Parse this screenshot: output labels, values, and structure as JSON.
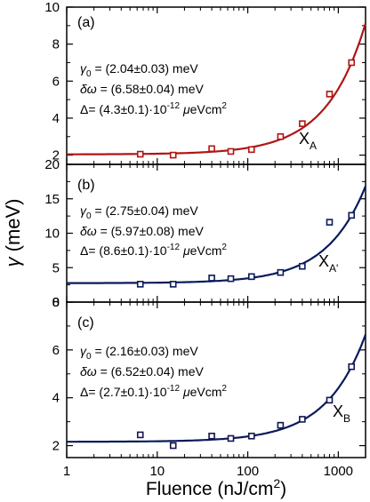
{
  "figure": {
    "xlabel": "Fluence (nJ/cm2)",
    "xlabel_main": "Fluence (nJ/cm",
    "xlabel_sup": "2",
    "xlabel_end": ")",
    "ylabel": "γ (meV)",
    "colors": {
      "a": "#b01515",
      "b": "#0a1a5a",
      "c": "#0a1a5a",
      "marker_c": "#141450"
    }
  },
  "chart_data": [
    {
      "type": "scatter",
      "panel": "(a)",
      "xscale": "log",
      "xlim": [
        1,
        2000
      ],
      "ylim": [
        1.5,
        10
      ],
      "yticks": [
        "2",
        "4",
        "6",
        "8",
        "10"
      ],
      "xticks": [
        "1",
        "10",
        "100",
        "1000"
      ],
      "series": [
        {
          "name": "XA",
          "name_main": "X",
          "name_sub": "A",
          "points": [
            [
              6.5,
              2.05
            ],
            [
              15,
              2.0
            ],
            [
              40,
              2.35
            ],
            [
              65,
              2.2
            ],
            [
              110,
              2.3
            ],
            [
              230,
              3.0
            ],
            [
              400,
              3.7
            ],
            [
              800,
              5.3
            ],
            [
              1400,
              7.0
            ]
          ]
        }
      ],
      "fit": {
        "gamma0": 2.04,
        "delta_omega": 6.58,
        "Delta": 4.3e-12
      },
      "annotations": {
        "gamma0": "γ0 = (2.04±0.03) meV",
        "delta_omega": "δω = (6.58±0.04) meV",
        "Delta": "Δ= (4.3±0.1)·10-12 μeVcm2"
      }
    },
    {
      "type": "scatter",
      "panel": "(b)",
      "xscale": "log",
      "xlim": [
        1,
        2000
      ],
      "ylim": [
        0,
        20
      ],
      "yticks": [
        "0",
        "5",
        "10",
        "15",
        "20"
      ],
      "xticks": [
        "1",
        "10",
        "100",
        "1000"
      ],
      "series": [
        {
          "name": "XA'",
          "name_main": "X",
          "name_sub": "A'",
          "points": [
            [
              6.5,
              2.6
            ],
            [
              15,
              2.6
            ],
            [
              40,
              3.5
            ],
            [
              65,
              3.4
            ],
            [
              110,
              3.7
            ],
            [
              230,
              4.3
            ],
            [
              400,
              5.2
            ],
            [
              800,
              11.6
            ],
            [
              1400,
              12.6
            ]
          ]
        }
      ],
      "fit": {
        "gamma0": 2.75,
        "delta_omega": 5.97,
        "Delta": 8.6e-12
      },
      "annotations": {
        "gamma0": "γ0 = (2.75±0.04) meV",
        "delta_omega": "δω = (5.97±0.08) meV",
        "Delta": "Δ= (8.6±0.1)·10-12 μeVcm2"
      }
    },
    {
      "type": "scatter",
      "panel": "(c)",
      "xscale": "log",
      "xlim": [
        1,
        2000
      ],
      "ylim": [
        1.5,
        8
      ],
      "yticks": [
        "2",
        "4",
        "6",
        "8"
      ],
      "xticks": [
        "1",
        "10",
        "100",
        "1000"
      ],
      "series": [
        {
          "name": "XB",
          "name_main": "X",
          "name_sub": "B",
          "points": [
            [
              6.5,
              2.45
            ],
            [
              15,
              2.0
            ],
            [
              40,
              2.4
            ],
            [
              65,
              2.3
            ],
            [
              110,
              2.4
            ],
            [
              230,
              2.85
            ],
            [
              400,
              3.1
            ],
            [
              800,
              3.9
            ],
            [
              1400,
              5.3
            ]
          ]
        }
      ],
      "fit": {
        "gamma0": 2.16,
        "delta_omega": 6.52,
        "Delta": 2.7e-12
      },
      "annotations": {
        "gamma0": "γ0 = (2.16±0.03) meV",
        "delta_omega": "δω = (6.52±0.04) meV",
        "Delta": "Δ= (2.7±0.1)·10-12 μeVcm2"
      }
    }
  ]
}
